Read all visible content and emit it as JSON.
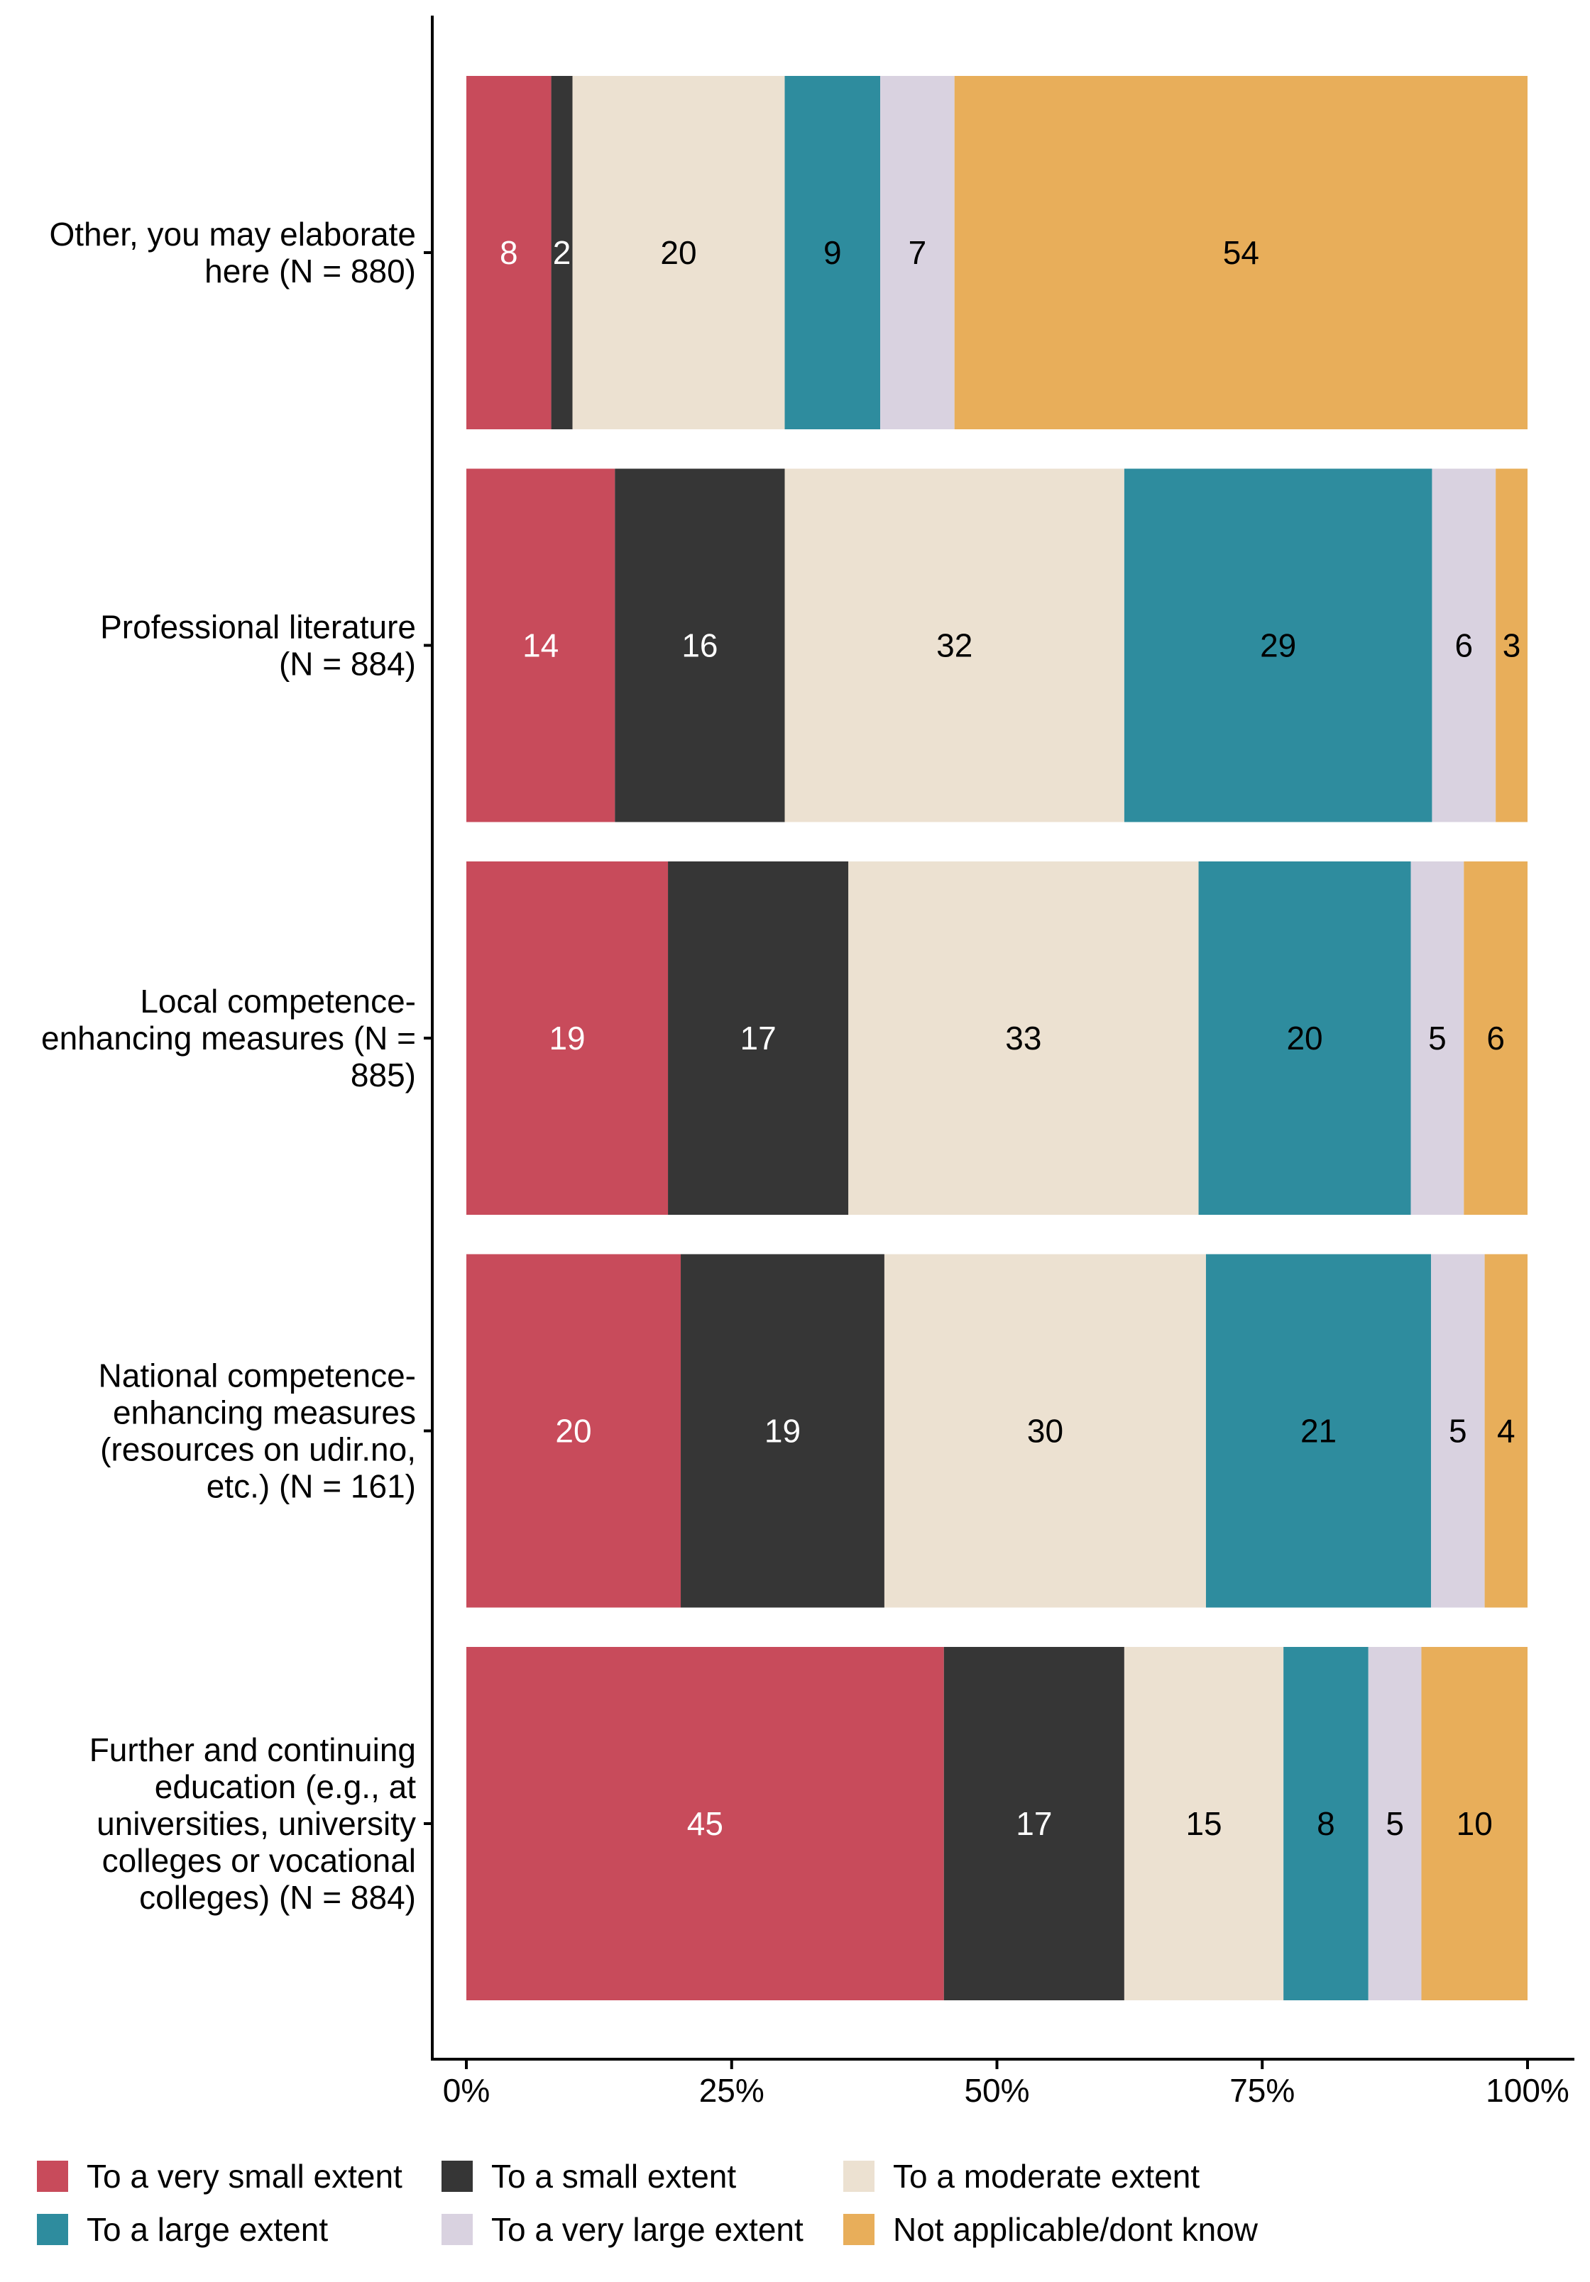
{
  "chart_data": {
    "type": "bar",
    "orientation": "horizontal",
    "stacked": true,
    "title": "",
    "xlabel": "",
    "ylabel": "",
    "xlim": [
      0,
      100
    ],
    "x_ticks": [
      "0%",
      "25%",
      "50%",
      "75%",
      "100%"
    ],
    "x_tick_values": [
      0,
      25,
      50,
      75,
      100
    ],
    "grid": false,
    "legend_position": "bottom",
    "categories": [
      {
        "lines": [
          "Other, you may elaborate",
          "here (N = 880)"
        ]
      },
      {
        "lines": [
          "Professional literature",
          "(N = 884)"
        ]
      },
      {
        "lines": [
          "Local competence-",
          "enhancing measures (N =",
          "885)"
        ]
      },
      {
        "lines": [
          "National competence-",
          "enhancing measures",
          "(resources on udir.no,",
          "etc.) (N = 161)"
        ]
      },
      {
        "lines": [
          "Further and continuing",
          "education (e.g., at",
          "universities, university",
          "colleges or vocational",
          "colleges) (N = 884)"
        ]
      }
    ],
    "series": [
      {
        "name": "To a very small extent",
        "color": "#C84B5B",
        "label_color": "#ffffff",
        "values": [
          8,
          14,
          19,
          20,
          45
        ]
      },
      {
        "name": "To a small extent",
        "color": "#363636",
        "label_color": "#ffffff",
        "values": [
          2,
          16,
          17,
          19,
          17
        ]
      },
      {
        "name": "To a moderate extent",
        "color": "#ECE1D1",
        "label_color": "#000000",
        "values": [
          20,
          32,
          33,
          30,
          15
        ]
      },
      {
        "name": "To a large extent",
        "color": "#2E8C9E",
        "label_color": "#000000",
        "values": [
          9,
          29,
          20,
          21,
          8
        ]
      },
      {
        "name": "To a very large extent",
        "color": "#D9D2E0",
        "label_color": "#000000",
        "values": [
          7,
          6,
          5,
          5,
          5
        ]
      },
      {
        "name": "Not applicable/dont know",
        "color": "#E8AE5A",
        "label_color": "#000000",
        "values": [
          54,
          3,
          6,
          4,
          10
        ]
      }
    ]
  }
}
